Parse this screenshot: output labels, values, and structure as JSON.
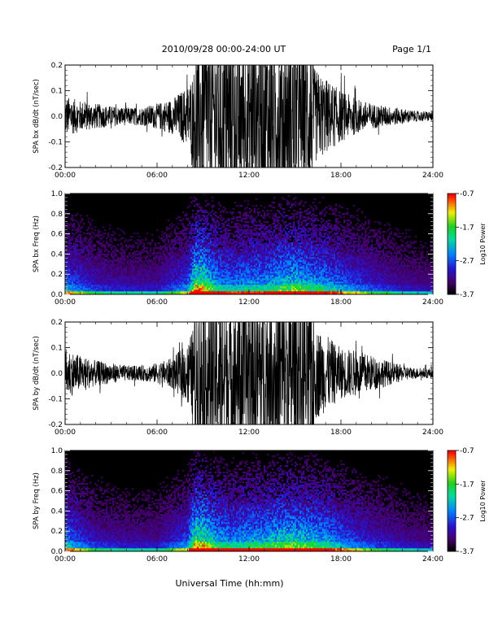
{
  "header": {
    "title": "2010/09/28  00:00-24:00 UT",
    "page": "Page 1/1"
  },
  "footer": {
    "xlabel": "Universal Time (hh:mm)"
  },
  "chart_data": [
    {
      "type": "line",
      "ylabel": "SPA bx dB/dt (nT/sec)",
      "xlim": [
        "00:00",
        "24:00"
      ],
      "ylim": [
        -0.2,
        0.2
      ],
      "xticks": [
        "00:00",
        "06:00",
        "12:00",
        "18:00",
        "24:00"
      ],
      "yticks": [
        "-0.2",
        "-0.1",
        "0.0",
        "0.1",
        "0.2"
      ],
      "envelope_hours": [
        0,
        1,
        2,
        3,
        4,
        5,
        6,
        7,
        8,
        8.5,
        9,
        10,
        11,
        12,
        13,
        14,
        15,
        16,
        17,
        18,
        19,
        20,
        21,
        22,
        23,
        24
      ],
      "envelope_amplitude": [
        0.08,
        0.06,
        0.05,
        0.04,
        0.035,
        0.035,
        0.05,
        0.07,
        0.12,
        0.2,
        0.2,
        0.2,
        0.2,
        0.2,
        0.2,
        0.2,
        0.2,
        0.2,
        0.15,
        0.1,
        0.07,
        0.05,
        0.04,
        0.03,
        0.02,
        0.02
      ]
    },
    {
      "type": "heatmap",
      "ylabel": "SPA bx Freq (Hz)",
      "xlim": [
        "00:00",
        "24:00"
      ],
      "ylim": [
        0,
        1.0
      ],
      "xticks": [
        "00:00",
        "06:00",
        "12:00",
        "18:00",
        "24:00"
      ],
      "yticks": [
        "0.0",
        "0.2",
        "0.4",
        "0.6",
        "0.8",
        "1.0"
      ],
      "colorbar": {
        "label": "Log10 Power",
        "ticks": [
          "-0.7",
          "-1.7",
          "-2.7",
          "-3.7"
        ],
        "range": [
          -3.7,
          -0.7
        ]
      },
      "activity_hours": [
        0,
        2,
        4,
        6,
        8,
        8.5,
        9,
        10,
        11,
        12,
        13,
        14,
        15,
        16,
        17,
        18,
        20,
        22,
        24
      ],
      "activity_level": [
        0.5,
        0.3,
        0.25,
        0.25,
        0.45,
        0.95,
        0.9,
        0.6,
        0.55,
        0.6,
        0.6,
        0.7,
        0.75,
        0.65,
        0.6,
        0.5,
        0.35,
        0.25,
        0.2
      ]
    },
    {
      "type": "line",
      "ylabel": "SPA by dB/dt (nT/sec)",
      "xlim": [
        "00:00",
        "24:00"
      ],
      "ylim": [
        -0.2,
        0.2
      ],
      "xticks": [
        "00:00",
        "06:00",
        "12:00",
        "18:00",
        "24:00"
      ],
      "yticks": [
        "-0.2",
        "-0.1",
        "0.0",
        "0.1",
        "0.2"
      ],
      "envelope_hours": [
        0,
        1,
        2,
        3,
        4,
        5,
        6,
        7,
        8,
        8.5,
        9,
        10,
        11,
        12,
        13,
        14,
        15,
        16,
        17,
        18,
        19,
        20,
        21,
        22,
        23,
        24
      ],
      "envelope_amplitude": [
        0.1,
        0.07,
        0.05,
        0.04,
        0.03,
        0.03,
        0.04,
        0.06,
        0.12,
        0.2,
        0.2,
        0.2,
        0.2,
        0.2,
        0.2,
        0.2,
        0.2,
        0.2,
        0.15,
        0.1,
        0.09,
        0.07,
        0.05,
        0.03,
        0.02,
        0.02
      ]
    },
    {
      "type": "heatmap",
      "ylabel": "SPA by Freq (Hz)",
      "xlim": [
        "00:00",
        "24:00"
      ],
      "ylim": [
        0,
        1.0
      ],
      "xticks": [
        "00:00",
        "06:00",
        "12:00",
        "18:00",
        "24:00"
      ],
      "yticks": [
        "0.0",
        "0.2",
        "0.4",
        "0.6",
        "0.8",
        "1.0"
      ],
      "colorbar": {
        "label": "Log10 Power",
        "ticks": [
          "-0.7",
          "-1.7",
          "-2.7",
          "-3.7"
        ],
        "range": [
          -3.7,
          -0.7
        ]
      },
      "activity_hours": [
        0,
        2,
        4,
        6,
        8,
        8.5,
        9,
        10,
        11,
        12,
        13,
        14,
        15,
        16,
        17,
        18,
        20,
        22,
        24
      ],
      "activity_level": [
        0.55,
        0.3,
        0.25,
        0.25,
        0.45,
        0.95,
        0.9,
        0.65,
        0.6,
        0.65,
        0.65,
        0.75,
        0.75,
        0.7,
        0.65,
        0.5,
        0.35,
        0.25,
        0.2
      ]
    }
  ]
}
